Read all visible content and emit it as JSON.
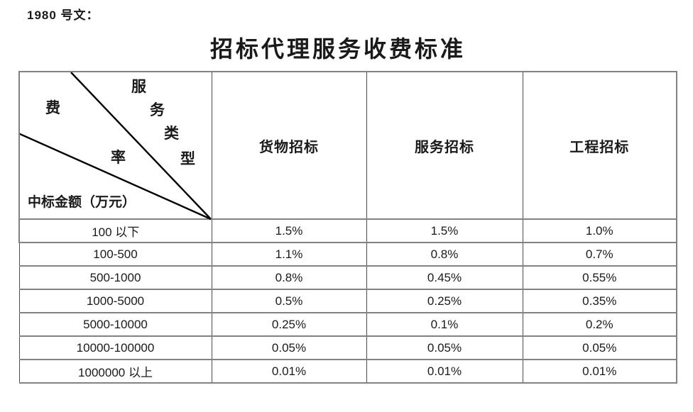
{
  "doc_label": "1980 号文：",
  "title": "招标代理服务收费标准",
  "table": {
    "corner": {
      "fee_rate_chars": [
        "费",
        "率"
      ],
      "service_type_chars": [
        "服",
        "务",
        "类",
        "型"
      ],
      "amount_label": "中标金额（万元）"
    },
    "columns": [
      "货物招标",
      "服务招标",
      "工程招标"
    ],
    "rows": [
      {
        "label": "100 以下",
        "values": [
          "1.5%",
          "1.5%",
          "1.0%"
        ]
      },
      {
        "label": "100-500",
        "values": [
          "1.1%",
          "0.8%",
          "0.7%"
        ]
      },
      {
        "label": "500-1000",
        "values": [
          "0.8%",
          "0.45%",
          "0.55%"
        ]
      },
      {
        "label": "1000-5000",
        "values": [
          "0.5%",
          "0.25%",
          "0.35%"
        ]
      },
      {
        "label": "5000-10000",
        "values": [
          "0.25%",
          "0.1%",
          "0.2%"
        ]
      },
      {
        "label": "10000-100000",
        "values": [
          "0.05%",
          "0.05%",
          "0.05%"
        ]
      },
      {
        "label": "1000000 以上",
        "values": [
          "0.01%",
          "0.01%",
          "0.01%"
        ]
      }
    ]
  },
  "colors": {
    "grid_horizontal": "#828282",
    "grid_vertical": "#4c4c4c",
    "diagonal": "#000000",
    "text": "#1a1a1a",
    "background": "#ffffff"
  }
}
